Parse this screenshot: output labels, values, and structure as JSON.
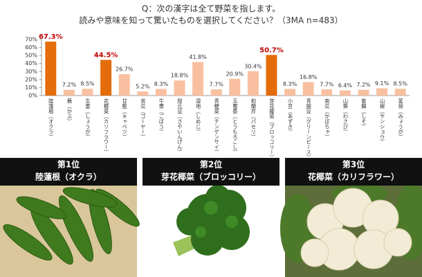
{
  "chart_data": {
    "type": "bar",
    "title": "Q：次の漢字は全て野菜を指します。",
    "subtitle": "読みや意味を知って驚いたものを選択してください？（3MA n=483）",
    "categories": [
      "陸蓮根（オクラ）",
      "蕪（かぶ）",
      "生姜（しょうが）",
      "花椰菜（カリフラワー）",
      "甘藍（キャベツ）",
      "苦瓜（ゴーヤー）",
      "牛蒡（ごぼう）",
      "隠元豆（さやいんげん）",
      "湿地（しめじ）",
      "青梗菜（チンゲンサイ）",
      "玉蜀黍（とうもろこし）",
      "和蘭芹（パセリ）",
      "芽花椰菜（ブロッコリー）",
      "小豆（あずき）",
      "青豌豆（グリーンピース）",
      "南瓜（かぼちゃ）",
      "山葵（わさび）",
      "紫蘇（しそ）",
      "山椒（サンショウ）",
      "茗荷（みょうが）"
    ],
    "values": [
      67.3,
      7.2,
      8.5,
      44.5,
      26.7,
      5.2,
      8.3,
      18.8,
      41.8,
      7.7,
      20.9,
      30.4,
      50.7,
      8.3,
      16.8,
      7.7,
      6.4,
      7.2,
      9.1,
      8.5
    ],
    "value_labels": [
      "67.3%",
      "7.2%",
      "8.5%",
      "44.5%",
      "26.7%",
      "5.2%",
      "8.3%",
      "18.8%",
      "41.8%",
      "7.7%",
      "20.9%",
      "30.4%",
      "50.7%",
      "8.3%",
      "16.8%",
      "7.7%",
      "6.4%",
      "7.2%",
      "9.1%",
      "8.5%"
    ],
    "colors": [
      "#e46c0a",
      "#f8c0a0",
      "#f8c0a0",
      "#e46c0a",
      "#f8c0a0",
      "#f8c0a0",
      "#f8c0a0",
      "#f8c0a0",
      "#f8c0a0",
      "#f8c0a0",
      "#f8c0a0",
      "#f8c0a0",
      "#e46c0a",
      "#f8c0a0",
      "#f8c0a0",
      "#f8c0a0",
      "#f8c0a0",
      "#f8c0a0",
      "#f8c0a0",
      "#f8c0a0"
    ],
    "label_colors": [
      "#c00000",
      "#333333",
      "#333333",
      "#c00000",
      "#333333",
      "#333333",
      "#333333",
      "#333333",
      "#333333",
      "#333333",
      "#333333",
      "#333333",
      "#c00000",
      "#333333",
      "#333333",
      "#333333",
      "#333333",
      "#333333",
      "#333333",
      "#333333"
    ],
    "ylim": [
      0,
      70
    ],
    "yticks": [
      {
        "value": 0,
        "label": "0%"
      },
      {
        "value": 10,
        "label": "10%"
      },
      {
        "value": 20,
        "label": "20%"
      },
      {
        "value": 30,
        "label": "30%"
      },
      {
        "value": 40,
        "label": "40%"
      },
      {
        "value": 50,
        "label": "50%"
      },
      {
        "value": 60,
        "label": "60%"
      },
      {
        "value": 70,
        "label": "70%"
      }
    ],
    "grid": false
  },
  "ranking": [
    {
      "rank": "第1位",
      "name": "陸蓮根（オクラ）"
    },
    {
      "rank": "第2位",
      "name": "芽花椰菜（ブロッコリー）"
    },
    {
      "rank": "第3位",
      "name": "花椰菜（カリフラワー）"
    }
  ]
}
